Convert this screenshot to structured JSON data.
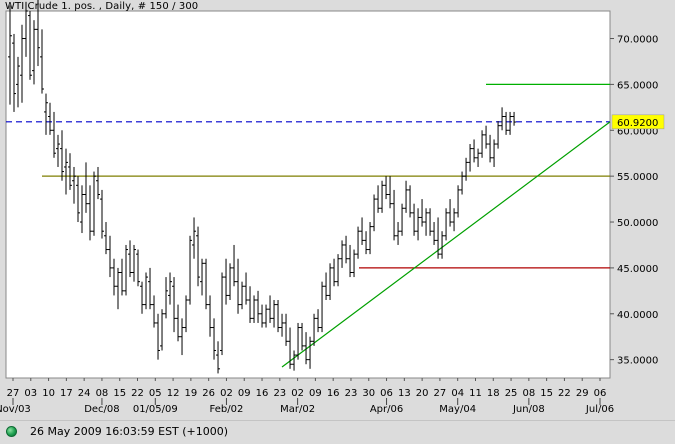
{
  "header": {
    "title": "WTI Crude 1. pos. , Daily, # 150 / 300"
  },
  "status": {
    "text": "26 May 2009 16:03:59  EST (+1000)",
    "indicator": "green-status-dot"
  },
  "colors": {
    "bars": "#000000",
    "support_line": "#7f7f00",
    "target_line": "#00b000",
    "level_line": "#b00000",
    "trend_line": "#00a000",
    "current_price_line": "#0000cc",
    "price_label_bg": "#ffff00"
  },
  "chart_data": {
    "type": "ohlc",
    "title": "WTI Crude 1. pos. , Daily, # 150 / 300",
    "ylim": [
      33,
      73
    ],
    "y_ticks": [
      "35.0000",
      "40.0000",
      "45.0000",
      "50.0000",
      "55.0000",
      "60.0000",
      "65.0000",
      "70.0000"
    ],
    "current_price_label": "60.9200",
    "x_day_labels": [
      "27",
      "03",
      "10",
      "17",
      "24",
      "08",
      "15",
      "22",
      "05",
      "12",
      "19",
      "26",
      "02",
      "09",
      "16",
      "23",
      "02",
      "09",
      "16",
      "23",
      "30",
      "06",
      "13",
      "20",
      "27",
      "04",
      "11",
      "18",
      "25",
      "08",
      "15",
      "22",
      "29",
      "06"
    ],
    "x_month_labels": [
      "Nov/03",
      "Dec/08",
      "01/05/09",
      "Feb/02",
      "Mar/02",
      "Apr/06",
      "May/04",
      "Jun/08",
      "Jul/06"
    ],
    "series": [
      {
        "values": [
          [
            68.0,
            73.6,
            62.8,
            70.3
          ],
          [
            69.5,
            70.5,
            62.0,
            64.0
          ],
          [
            65.0,
            68.0,
            62.5,
            67.0
          ],
          [
            66.0,
            71.5,
            63.0,
            70.0
          ],
          [
            70.0,
            74.0,
            68.0,
            73.0
          ],
          [
            72.5,
            73.0,
            65.5,
            66.0
          ],
          [
            66.5,
            72.0,
            65.0,
            71.0
          ],
          [
            71.0,
            75.0,
            67.0,
            69.0
          ],
          [
            68.0,
            71.0,
            64.0,
            64.5
          ],
          [
            62.0,
            64.0,
            59.5,
            63.0
          ],
          [
            61.5,
            63.0,
            59.5,
            60.0
          ],
          [
            60.0,
            62.0,
            57.0,
            57.5
          ],
          [
            58.0,
            59.5,
            56.0,
            58.5
          ],
          [
            58.0,
            60.0,
            54.5,
            55.5
          ],
          [
            56.0,
            58.0,
            53.0,
            56.5
          ],
          [
            56.0,
            57.5,
            53.5,
            54.0
          ],
          [
            54.5,
            56.0,
            52.0,
            55.0
          ],
          [
            54.0,
            55.0,
            50.0,
            51.0
          ],
          [
            50.0,
            54.0,
            48.8,
            53.0
          ],
          [
            53.0,
            56.5,
            51.0,
            52.0
          ],
          [
            52.0,
            54.0,
            48.0,
            49.0
          ],
          [
            49.0,
            55.5,
            48.5,
            55.0
          ],
          [
            54.5,
            56.0,
            52.5,
            53.0
          ],
          [
            52.5,
            53.5,
            48.2,
            49.0
          ],
          [
            48.5,
            50.0,
            46.5,
            47.0
          ],
          [
            47.0,
            48.5,
            44.0,
            45.0
          ],
          [
            45.0,
            46.0,
            42.0,
            43.0
          ],
          [
            43.0,
            45.0,
            40.5,
            44.5
          ],
          [
            44.5,
            46.0,
            42.0,
            42.5
          ],
          [
            42.5,
            47.5,
            42.0,
            47.0
          ],
          [
            46.5,
            48.0,
            44.0,
            44.5
          ],
          [
            44.5,
            47.5,
            43.5,
            47.0
          ],
          [
            46.5,
            47.0,
            43.0,
            43.5
          ],
          [
            43.0,
            43.5,
            40.0,
            41.0
          ],
          [
            41.0,
            44.5,
            40.5,
            44.0
          ],
          [
            43.5,
            45.0,
            40.5,
            41.0
          ],
          [
            41.0,
            42.0,
            38.5,
            39.0
          ],
          [
            39.0,
            40.0,
            35.0,
            36.0
          ],
          [
            36.5,
            40.5,
            36.0,
            40.0
          ],
          [
            40.0,
            44.0,
            39.5,
            42.5
          ],
          [
            42.0,
            44.5,
            41.0,
            43.5
          ],
          [
            43.0,
            44.0,
            38.0,
            39.5
          ],
          [
            39.5,
            41.0,
            37.0,
            37.5
          ],
          [
            37.5,
            39.5,
            35.5,
            38.5
          ],
          [
            38.5,
            42.0,
            38.0,
            41.5
          ],
          [
            41.5,
            48.5,
            41.0,
            48.0
          ],
          [
            47.5,
            50.5,
            46.0,
            49.0
          ],
          [
            48.5,
            49.5,
            43.0,
            44.0
          ],
          [
            43.5,
            46.0,
            42.0,
            45.5
          ],
          [
            45.5,
            46.0,
            40.5,
            41.0
          ],
          [
            41.0,
            42.0,
            37.5,
            38.5
          ],
          [
            38.5,
            39.5,
            35.0,
            36.0
          ],
          [
            35.5,
            37.0,
            33.5,
            34.0
          ],
          [
            36.0,
            44.5,
            35.5,
            44.0
          ],
          [
            44.0,
            46.0,
            41.0,
            42.0
          ],
          [
            42.0,
            45.5,
            41.5,
            45.0
          ],
          [
            45.0,
            47.5,
            43.0,
            43.5
          ],
          [
            43.5,
            46.0,
            40.0,
            41.0
          ],
          [
            41.0,
            43.5,
            40.5,
            43.0
          ],
          [
            43.0,
            44.5,
            41.0,
            41.5
          ],
          [
            41.5,
            43.0,
            39.0,
            39.5
          ],
          [
            39.5,
            42.0,
            39.0,
            41.5
          ],
          [
            41.5,
            42.5,
            39.0,
            40.0
          ],
          [
            40.0,
            41.0,
            38.5,
            39.0
          ],
          [
            39.0,
            41.0,
            38.5,
            40.5
          ],
          [
            40.5,
            42.0,
            39.0,
            39.5
          ],
          [
            39.5,
            41.5,
            38.5,
            41.0
          ],
          [
            41.0,
            41.5,
            38.0,
            38.5
          ],
          [
            38.5,
            40.0,
            37.5,
            39.0
          ],
          [
            39.0,
            40.0,
            36.5,
            37.0
          ],
          [
            37.0,
            38.5,
            34.0,
            34.5
          ],
          [
            34.5,
            36.0,
            33.8,
            35.5
          ],
          [
            35.5,
            39.0,
            35.0,
            38.5
          ],
          [
            38.5,
            39.0,
            36.0,
            36.5
          ],
          [
            36.5,
            38.0,
            34.5,
            35.0
          ],
          [
            35.0,
            37.5,
            34.0,
            37.0
          ],
          [
            37.0,
            40.0,
            36.5,
            39.5
          ],
          [
            39.5,
            40.5,
            38.0,
            38.5
          ],
          [
            38.5,
            43.5,
            38.0,
            43.0
          ],
          [
            43.0,
            44.5,
            41.5,
            42.0
          ],
          [
            42.0,
            45.5,
            41.5,
            45.0
          ],
          [
            45.0,
            46.0,
            43.0,
            43.5
          ],
          [
            43.5,
            46.5,
            43.0,
            46.0
          ],
          [
            46.0,
            48.0,
            45.0,
            47.5
          ],
          [
            47.5,
            48.5,
            45.5,
            46.0
          ],
          [
            46.0,
            47.5,
            44.0,
            44.5
          ],
          [
            44.5,
            47.0,
            44.0,
            46.5
          ],
          [
            46.5,
            49.5,
            46.0,
            49.0
          ],
          [
            49.0,
            50.5,
            47.5,
            48.0
          ],
          [
            48.0,
            49.0,
            46.5,
            47.0
          ],
          [
            47.0,
            50.0,
            46.5,
            49.5
          ],
          [
            49.5,
            53.0,
            49.0,
            52.5
          ],
          [
            52.5,
            54.0,
            51.0,
            51.5
          ],
          [
            51.5,
            54.5,
            51.0,
            54.0
          ],
          [
            54.0,
            55.0,
            52.5,
            53.0
          ],
          [
            53.0,
            55.0,
            51.5,
            52.0
          ],
          [
            52.0,
            53.5,
            48.0,
            48.5
          ],
          [
            48.5,
            50.0,
            47.5,
            49.0
          ],
          [
            49.0,
            52.0,
            48.5,
            51.5
          ],
          [
            51.5,
            54.5,
            51.0,
            53.5
          ],
          [
            53.5,
            54.0,
            50.5,
            51.0
          ],
          [
            51.0,
            52.0,
            48.5,
            49.0
          ],
          [
            49.0,
            51.5,
            48.0,
            50.5
          ],
          [
            50.5,
            52.5,
            49.5,
            50.0
          ],
          [
            50.0,
            51.5,
            48.5,
            51.0
          ],
          [
            51.0,
            51.5,
            48.5,
            49.0
          ],
          [
            49.0,
            50.0,
            47.5,
            48.0
          ],
          [
            48.0,
            50.5,
            46.0,
            46.5
          ],
          [
            46.5,
            49.0,
            46.0,
            48.5
          ],
          [
            48.5,
            51.5,
            48.0,
            51.0
          ],
          [
            51.0,
            52.5,
            49.5,
            50.0
          ],
          [
            50.0,
            51.5,
            49.0,
            51.0
          ],
          [
            51.0,
            54.0,
            50.5,
            53.5
          ],
          [
            53.5,
            55.5,
            53.0,
            55.0
          ],
          [
            55.0,
            57.0,
            54.5,
            56.5
          ],
          [
            56.5,
            58.5,
            55.5,
            58.0
          ],
          [
            58.0,
            59.0,
            56.5,
            57.0
          ],
          [
            57.0,
            58.0,
            56.0,
            57.5
          ],
          [
            57.5,
            60.0,
            57.0,
            59.5
          ],
          [
            59.5,
            60.5,
            58.0,
            58.5
          ],
          [
            58.5,
            59.5,
            56.5,
            57.0
          ],
          [
            57.0,
            59.0,
            56.0,
            58.5
          ],
          [
            58.5,
            61.0,
            58.0,
            60.5
          ],
          [
            60.5,
            62.5,
            60.0,
            61.5
          ],
          [
            61.5,
            62.0,
            59.5,
            60.0
          ],
          [
            60.0,
            62.0,
            59.5,
            61.5
          ],
          [
            61.5,
            62.0,
            60.5,
            60.9
          ]
        ]
      }
    ],
    "horizontal_lines": [
      {
        "name": "support",
        "y": 55.0,
        "x_from": "10 Nov",
        "x_to": "end"
      },
      {
        "name": "target",
        "y": 65.0,
        "x_from": "18 May",
        "x_to": "end"
      },
      {
        "name": "level",
        "y": 45.0,
        "x_from": "23 Mar",
        "x_to": "end"
      },
      {
        "name": "current-price",
        "y": 60.92,
        "x_from": "start",
        "x_to": "end"
      }
    ],
    "trendline": {
      "from_price": 34.2,
      "to_price": 60.92
    },
    "grid": false,
    "legend": "none"
  }
}
